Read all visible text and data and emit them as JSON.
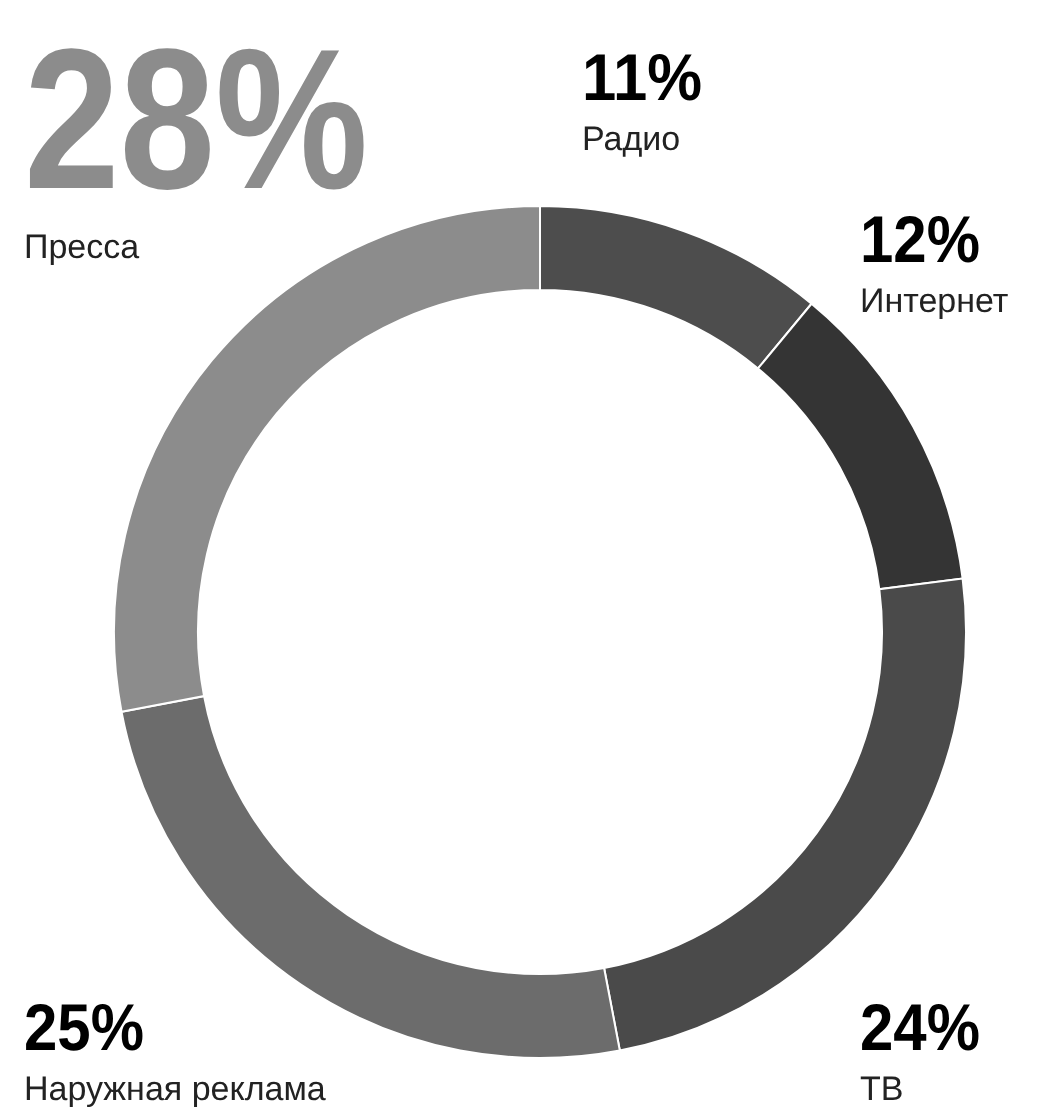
{
  "chart_data": {
    "type": "donut",
    "categories": [
      "Радио",
      "Интернет",
      "ТВ",
      "Наружная реклама",
      "Пресса"
    ],
    "values": [
      11,
      12,
      24,
      25,
      28
    ],
    "colors": [
      "#4d4d4d",
      "#343434",
      "#4a4a4a",
      "#6c6c6c",
      "#8c8c8c"
    ],
    "value_labels": [
      "11%",
      "12%",
      "24%",
      "25%",
      "28%"
    ],
    "legend": false
  }
}
